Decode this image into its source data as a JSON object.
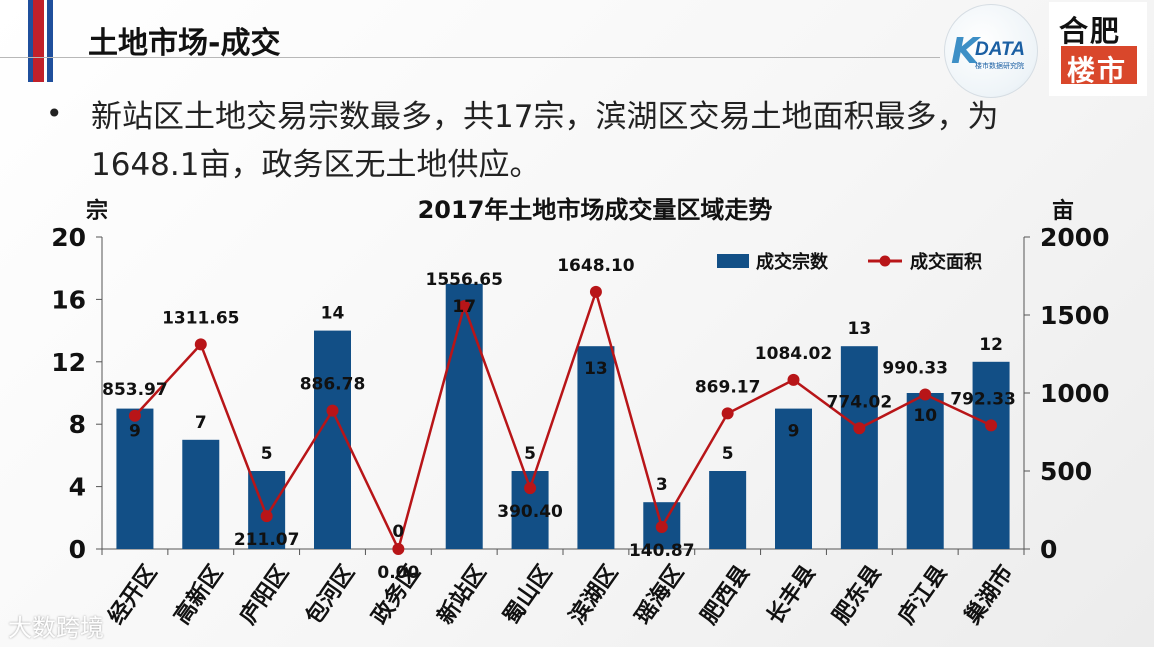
{
  "slide": {
    "title": "土地市场-成交",
    "bullet": "新站区土地交易宗数最多，共17宗，滨湖区交易土地面积最多，为1648.1亩，政务区无土地供应。",
    "logo_kdata": "DATA",
    "logo_kdata_k": "K",
    "logo_kdata_sub": "楼市数据研究院",
    "logo_hefei_top": "合肥",
    "logo_hefei_bottom": "楼市",
    "watermark": "大数跨境"
  },
  "colors": {
    "bar": "#124f86",
    "line": "#b81518",
    "stripe_red": "#c0202a",
    "stripe_blue": "#1f4f9c"
  },
  "chart_data": {
    "type": "bar",
    "title": "2017年土地市场成交量区域走势",
    "ylabel": "宗",
    "y2label": "亩",
    "categories": [
      "经开区",
      "高新区",
      "庐阳区",
      "包河区",
      "政务区",
      "新站区",
      "蜀山区",
      "滨湖区",
      "瑶海区",
      "肥西县",
      "长丰县",
      "肥东县",
      "庐江县",
      "巢湖市"
    ],
    "series": [
      {
        "name": "成交宗数",
        "type": "bar",
        "axis": "left",
        "values": [
          9,
          7,
          5,
          14,
          0,
          17,
          5,
          13,
          3,
          5,
          9,
          13,
          10,
          12
        ]
      },
      {
        "name": "成交面积",
        "type": "line",
        "axis": "right",
        "values": [
          853.97,
          1311.65,
          211.07,
          886.78,
          0.0,
          1556.65,
          390.4,
          1648.1,
          140.87,
          869.17,
          1084.02,
          774.02,
          990.33,
          792.33
        ]
      }
    ],
    "bar_labels": [
      "9",
      "7",
      "5",
      "14",
      "0",
      "17",
      "5",
      "13",
      "3",
      "5",
      "9",
      "13",
      "10",
      "12"
    ],
    "line_labels": [
      "853.97",
      "1311.65",
      "211.07",
      "886.78",
      "0.00",
      "1556.65",
      "390.40",
      "1648.10",
      "140.87",
      "869.17",
      "1084.02",
      "774.02",
      "990.33",
      "792.33"
    ],
    "ylim": [
      0,
      20
    ],
    "y2lim": [
      0,
      2000
    ],
    "yticks": [
      "0",
      "4",
      "8",
      "12",
      "16",
      "20"
    ],
    "y2ticks": [
      "0",
      "500",
      "1000",
      "1500",
      "2000"
    ],
    "grid": false,
    "legend": "top-right"
  }
}
